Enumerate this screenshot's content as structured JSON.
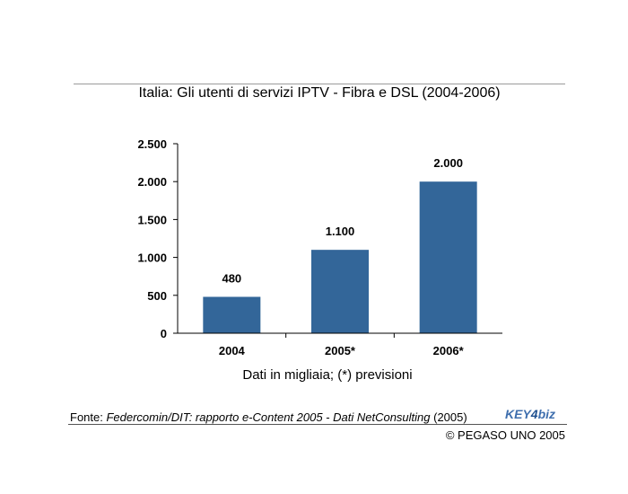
{
  "title": "Italia: Gli utenti di servizi IPTV - Fibra e DSL (2004-2006)",
  "chart_data": {
    "type": "bar",
    "title": "Italia: Gli utenti di servizi IPTV - Fibra e DSL (2004-2006)",
    "xlabel": "Dati in migliaia; (*) previsioni",
    "ylabel": "",
    "categories": [
      "2004",
      "2005*",
      "2006*"
    ],
    "values": [
      480,
      1100,
      2000
    ],
    "value_labels": [
      "480",
      "1.100",
      "2.000"
    ],
    "ylim": [
      0,
      2500
    ],
    "yticks": [
      0,
      500,
      1000,
      1500,
      2000,
      2500
    ],
    "ytick_labels": [
      "0",
      "500",
      "1.000",
      "1.500",
      "2.000",
      "2.500"
    ],
    "bar_color": "#336699",
    "grid": false
  },
  "footer": {
    "source_prefix": "Fonte: ",
    "source_title": "Federcomin/DIT: rapporto e-Content 2005 - Dati NetConsulting",
    "source_suffix": " (2005)",
    "logo": {
      "part1": "KEY",
      "part2": "4",
      "part3": "biz"
    },
    "copyright": "© PEGASO UNO 2005"
  }
}
